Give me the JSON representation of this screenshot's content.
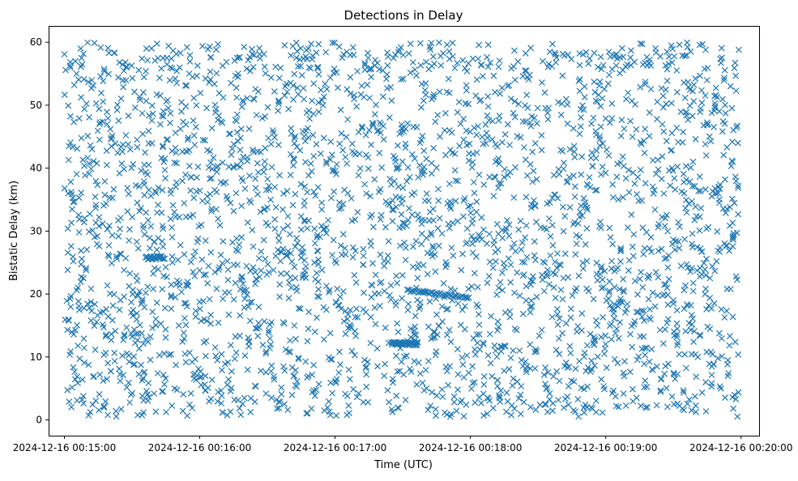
{
  "chart_data": {
    "type": "scatter",
    "title": "Detections in Delay",
    "xlabel": "Time (UTC)",
    "ylabel": "Bistatic Delay (km)",
    "x_range": [
      "2024-12-16 00:14:53",
      "2024-12-16 00:20:08"
    ],
    "ylim": [
      -2.5,
      62.6
    ],
    "x_ticks": [
      "2024-12-16 00:15:00",
      "2024-12-16 00:16:00",
      "2024-12-16 00:17:00",
      "2024-12-16 00:18:00",
      "2024-12-16 00:19:00",
      "2024-12-16 00:20:00"
    ],
    "y_ticks": [
      "0",
      "10",
      "20",
      "30",
      "40",
      "50",
      "60"
    ],
    "grid": false,
    "marker": "x",
    "marker_color": "#1f77b4",
    "series": [
      {
        "x_start": "2024-12-16 00:15:00",
        "x_end": "2024-12-16 00:19:59",
        "approx_count": 3000,
        "y_range_km": [
          0.5,
          60
        ],
        "distribution": "dense clutter roughly uniform across delay and time",
        "samples": [
          {
            "t": "00:15:00",
            "y": 58.1
          },
          {
            "t": "00:15:02",
            "y": 43.5
          },
          {
            "t": "00:15:04",
            "y": 25.2
          },
          {
            "t": "00:15:06",
            "y": 11.8
          },
          {
            "t": "00:15:08",
            "y": 6.4
          },
          {
            "t": "00:15:12",
            "y": 52.7
          },
          {
            "t": "00:15:20",
            "y": 35.3
          },
          {
            "t": "00:15:35",
            "y": 12.1
          },
          {
            "t": "00:15:42",
            "y": 25.8
          },
          {
            "t": "00:15:47",
            "y": 56.0
          },
          {
            "t": "00:16:10",
            "y": 47.2
          },
          {
            "t": "00:16:25",
            "y": 22.4
          },
          {
            "t": "00:16:40",
            "y": 29.5
          },
          {
            "t": "00:16:55",
            "y": 44.8
          },
          {
            "t": "00:17:10",
            "y": 33.0
          },
          {
            "t": "00:17:25",
            "y": 12.3
          },
          {
            "t": "00:17:30",
            "y": 12.1
          },
          {
            "t": "00:17:33",
            "y": 12.0
          },
          {
            "t": "00:17:40",
            "y": 20.3
          },
          {
            "t": "00:17:55",
            "y": 50.5
          },
          {
            "t": "00:18:05",
            "y": 28.7
          },
          {
            "t": "00:18:20",
            "y": 26.8
          },
          {
            "t": "00:18:40",
            "y": 24.6
          },
          {
            "t": "00:19:00",
            "y": 47.9
          },
          {
            "t": "00:19:20",
            "y": 56.3
          },
          {
            "t": "00:19:35",
            "y": 10.4
          },
          {
            "t": "00:19:50",
            "y": 37.0
          },
          {
            "t": "00:19:59",
            "y": 58.8
          }
        ]
      }
    ]
  }
}
